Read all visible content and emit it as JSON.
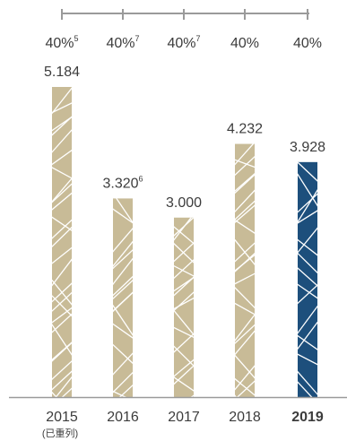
{
  "chart_data": {
    "type": "bar",
    "categories": [
      "2015",
      "2016",
      "2017",
      "2018",
      "2019"
    ],
    "category_notes": [
      "(已重列)",
      "",
      "",
      "",
      ""
    ],
    "values": [
      5.184,
      3.32,
      3.0,
      4.232,
      3.928
    ],
    "value_labels": [
      {
        "text": "5.184",
        "sup": ""
      },
      {
        "text": "3.320",
        "sup": "6"
      },
      {
        "text": "3.000",
        "sup": ""
      },
      {
        "text": "4.232",
        "sup": ""
      },
      {
        "text": "3.928",
        "sup": ""
      }
    ],
    "top_labels": [
      {
        "text": "40%",
        "sup": "5"
      },
      {
        "text": "40%",
        "sup": "7"
      },
      {
        "text": "40%",
        "sup": "7"
      },
      {
        "text": "40%",
        "sup": ""
      },
      {
        "text": "40%",
        "sup": ""
      }
    ],
    "highlight_index": 4,
    "colors": {
      "bar": "#c8bb97",
      "highlight": "#1d4f7c",
      "pattern": "#ffffff",
      "axis": "#9a9a9a",
      "text": "#3c3c3c"
    },
    "ylim": [
      0,
      5.5
    ],
    "grid": false
  }
}
